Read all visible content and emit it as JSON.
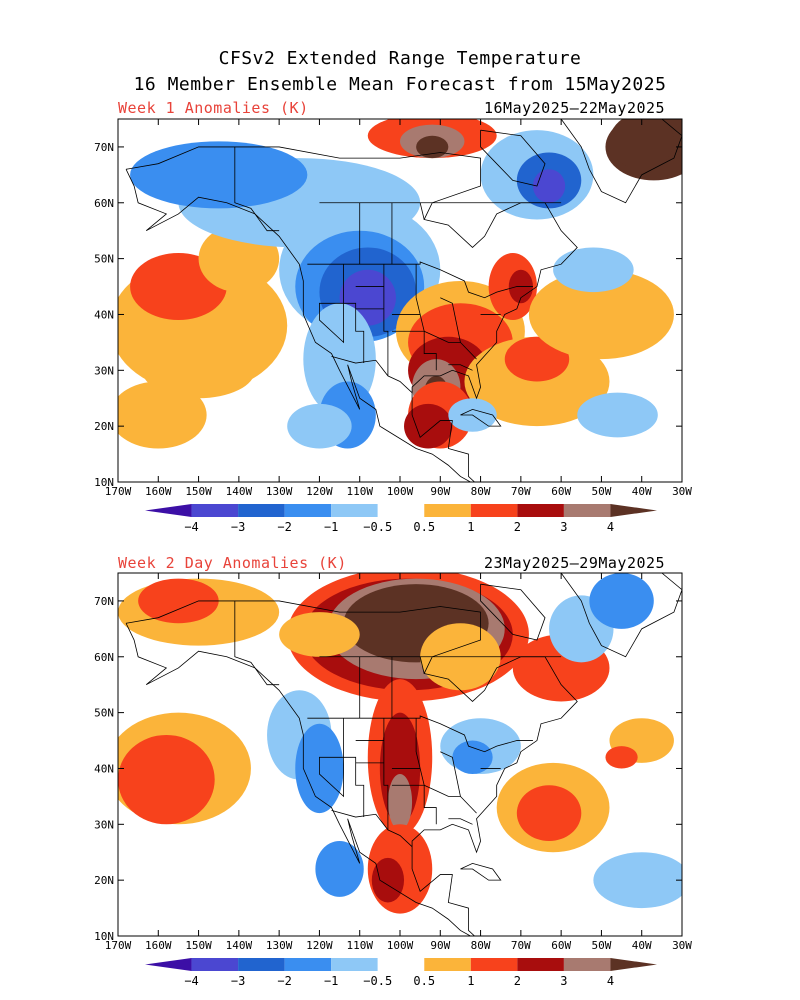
{
  "header": {
    "line1": "CFSv2 Extended Range Temperature",
    "line2": "16 Member Ensemble Mean Forecast from 15May2025"
  },
  "panels": [
    {
      "title": "Week 1 Anomalies (K)",
      "dates": "16May2025—22May2025",
      "pattern": "week1"
    },
    {
      "title": "Week 2 Day Anomalies (K)",
      "dates": "23May2025—29May2025",
      "pattern": "week2"
    }
  ],
  "axes": {
    "lat_labels": [
      "70N",
      "60N",
      "50N",
      "40N",
      "30N",
      "20N",
      "10N"
    ],
    "lon_labels": [
      "170W",
      "160W",
      "150W",
      "140W",
      "130W",
      "120W",
      "110W",
      "100W",
      "90W",
      "80W",
      "70W",
      "60W",
      "50W",
      "40W",
      "30W"
    ]
  },
  "colorbar": {
    "labels": [
      "−4",
      "−3",
      "−2",
      "−1",
      "−0.5",
      "0.5",
      "1",
      "2",
      "3",
      "4"
    ],
    "colors": [
      "#3c0fa6",
      "#4b47d1",
      "#2164cf",
      "#3a8ef0",
      "#8ec8f6",
      "#ffffff",
      "#fbb43a",
      "#f7421c",
      "#a80d0d",
      "#a87a70",
      "#5c3224"
    ]
  }
}
